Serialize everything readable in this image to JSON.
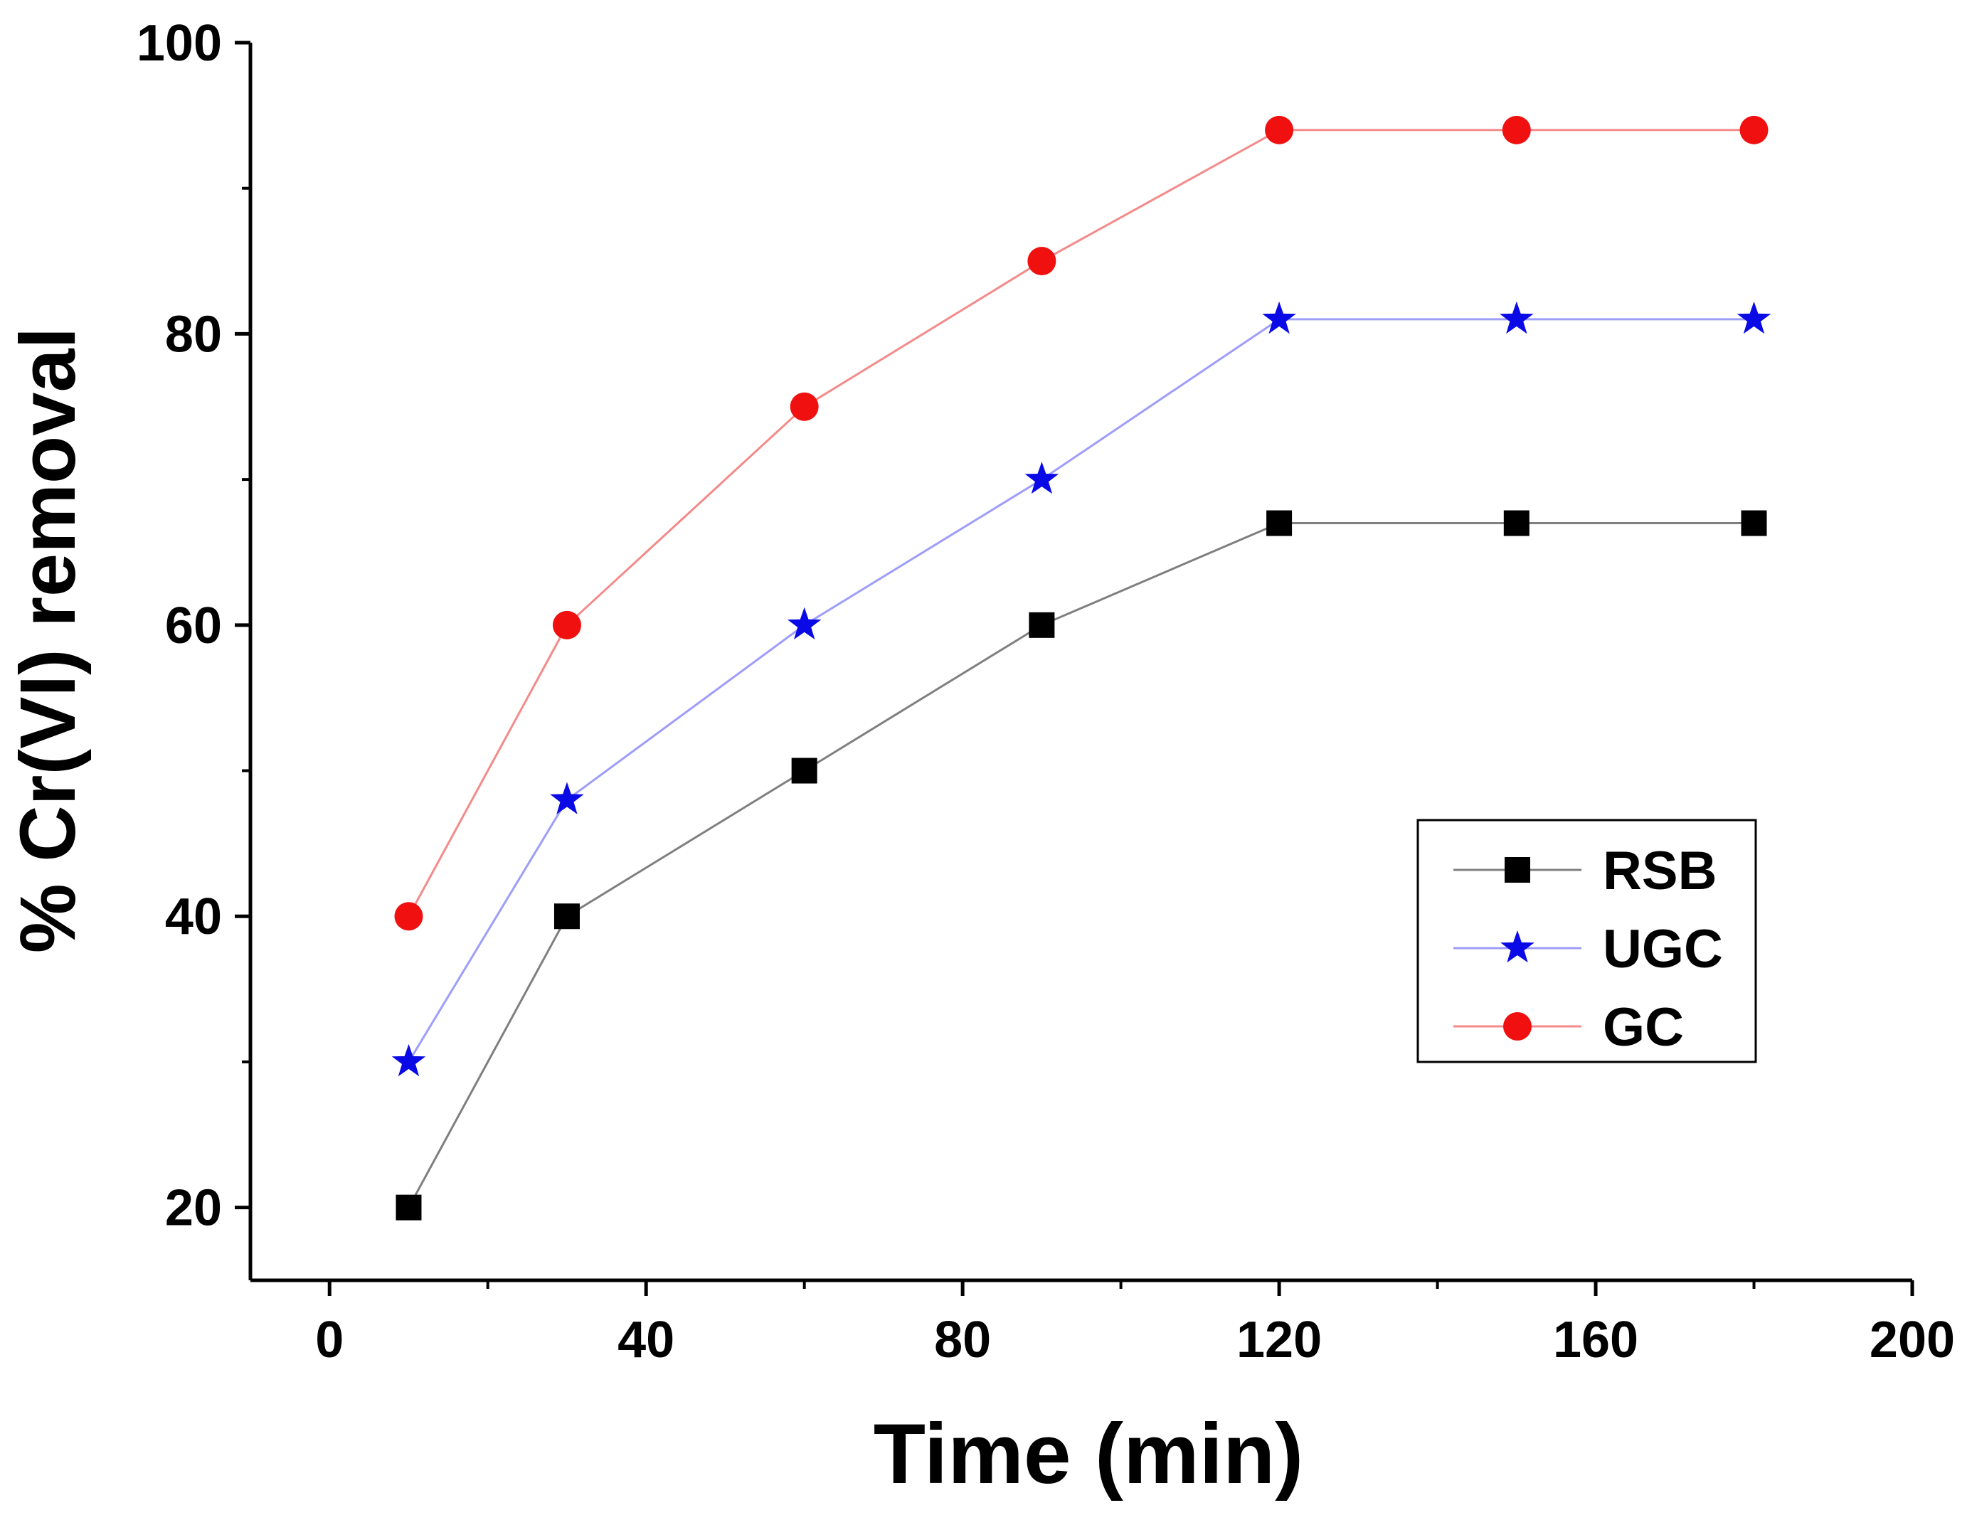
{
  "chart_data": {
    "type": "line",
    "title": "",
    "xlabel": "Time (min)",
    "ylabel": "% Cr(VI) removal",
    "xlim": [
      -10,
      200
    ],
    "ylim": [
      15,
      100
    ],
    "xticks": [
      0,
      40,
      80,
      120,
      160,
      200
    ],
    "xtick_labels": [
      "0",
      "40",
      "80",
      "120",
      "160",
      "200"
    ],
    "xminor": [
      20,
      60,
      100,
      140,
      180
    ],
    "yticks": [
      20,
      40,
      60,
      80,
      100
    ],
    "ytick_labels": [
      "20",
      "40",
      "60",
      "80",
      "100"
    ],
    "yminor": [
      30,
      50,
      70,
      90
    ],
    "grid": false,
    "legend_position": "center-right",
    "x": [
      10,
      30,
      60,
      90,
      120,
      150,
      180
    ],
    "series": [
      {
        "name": "RSB",
        "marker": "square",
        "color": "#000000",
        "line_color": "#7f7f7f",
        "values": [
          20,
          40,
          50,
          60,
          67,
          67,
          67
        ]
      },
      {
        "name": "UGC",
        "marker": "star",
        "color": "#0a0ae6",
        "line_color": "#9d9dfa",
        "values": [
          30,
          48,
          60,
          70,
          81,
          81,
          81
        ]
      },
      {
        "name": "GC",
        "marker": "circle",
        "color": "#f01010",
        "line_color": "#f48a8a",
        "values": [
          40,
          60,
          75,
          85,
          94,
          94,
          94
        ]
      }
    ]
  }
}
